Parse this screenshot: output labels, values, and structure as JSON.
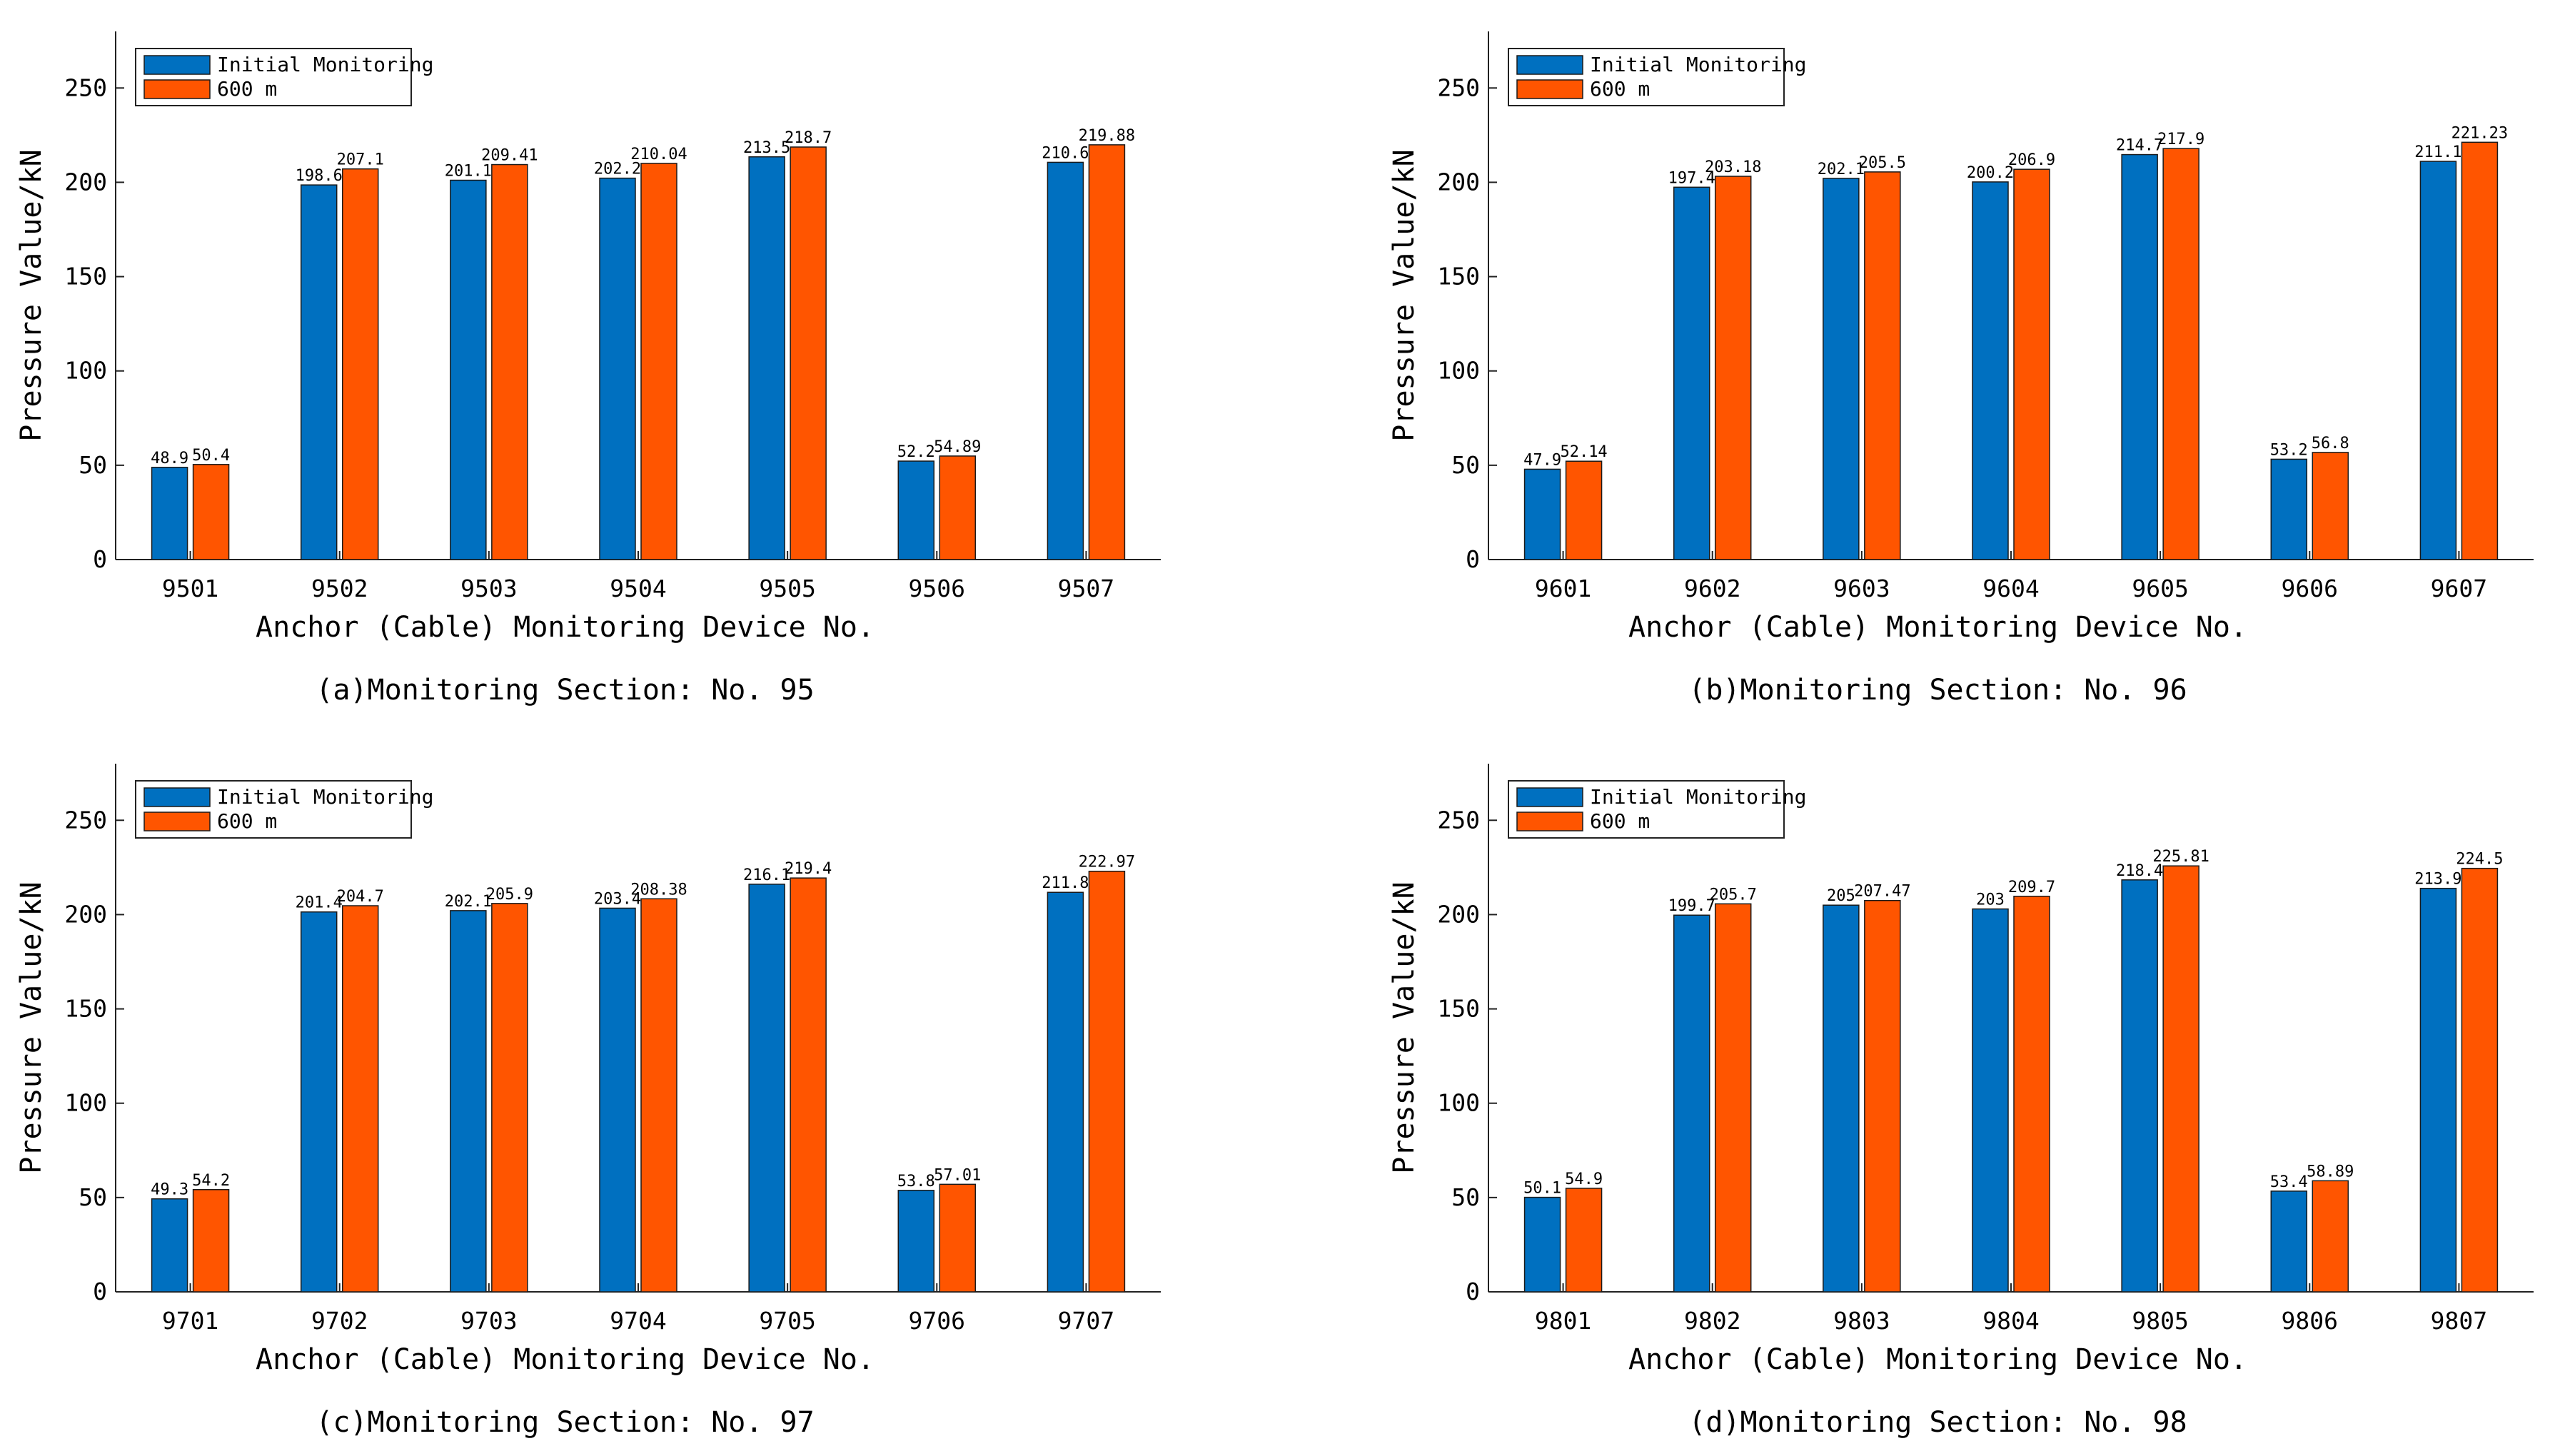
{
  "chart_data": [
    {
      "type": "bar",
      "caption": "(a)Monitoring Section: No. 95",
      "categories": [
        "9501",
        "9502",
        "9503",
        "9504",
        "9505",
        "9506",
        "9507"
      ],
      "series": [
        {
          "name": "Initial Monitoring",
          "color": "#0070C0",
          "values": [
            48.9,
            198.6,
            201.1,
            202.2,
            213.5,
            52.2,
            210.6
          ],
          "labels": [
            "48.9",
            "198.6",
            "201.1",
            "202.2",
            "213.5",
            "52.2",
            "210.6"
          ]
        },
        {
          "name": "600 m",
          "color": "#FF5500",
          "values": [
            50.4,
            207.1,
            209.41,
            210.04,
            218.7,
            54.89,
            219.88
          ],
          "labels": [
            "50.4",
            "207.1",
            "209.41",
            "210.04",
            "218.7",
            "54.89",
            "219.88"
          ]
        }
      ],
      "xlabel": "Anchor (Cable) Monitoring Device No.",
      "ylabel": "Pressure Value/kN",
      "ylim": [
        0,
        280
      ],
      "yticks": [
        0,
        50,
        100,
        150,
        200,
        250
      ],
      "legend": "top-left"
    },
    {
      "type": "bar",
      "caption": "(b)Monitoring Section: No. 96",
      "categories": [
        "9601",
        "9602",
        "9603",
        "9604",
        "9605",
        "9606",
        "9607"
      ],
      "series": [
        {
          "name": "Initial Monitoring",
          "color": "#0070C0",
          "values": [
            47.9,
            197.4,
            202.1,
            200.2,
            214.7,
            53.2,
            211.1
          ],
          "labels": [
            "47.9",
            "197.4",
            "202.1",
            "200.2",
            "214.7",
            "53.2",
            "211.1"
          ]
        },
        {
          "name": "600 m",
          "color": "#FF5500",
          "values": [
            52.14,
            203.18,
            205.5,
            206.9,
            217.9,
            56.8,
            221.23
          ],
          "labels": [
            "52.14",
            "203.18",
            "205.5",
            "206.9",
            "217.9",
            "56.8",
            "221.23"
          ]
        }
      ],
      "xlabel": "Anchor (Cable) Monitoring Device No.",
      "ylabel": "Pressure Value/kN",
      "ylim": [
        0,
        280
      ],
      "yticks": [
        0,
        50,
        100,
        150,
        200,
        250
      ],
      "legend": "top-left"
    },
    {
      "type": "bar",
      "caption": "(c)Monitoring Section: No. 97",
      "categories": [
        "9701",
        "9702",
        "9703",
        "9704",
        "9705",
        "9706",
        "9707"
      ],
      "series": [
        {
          "name": "Initial Monitoring",
          "color": "#0070C0",
          "values": [
            49.3,
            201.4,
            202.1,
            203.4,
            216.1,
            53.8,
            211.8
          ],
          "labels": [
            "49.3",
            "201.4",
            "202.1",
            "203.4",
            "216.1",
            "53.8",
            "211.8"
          ]
        },
        {
          "name": "600 m",
          "color": "#FF5500",
          "values": [
            54.2,
            204.7,
            205.9,
            208.38,
            219.4,
            57.01,
            222.97
          ],
          "labels": [
            "54.2",
            "204.7",
            "205.9",
            "208.38",
            "219.4",
            "57.01",
            "222.97"
          ]
        }
      ],
      "xlabel": "Anchor (Cable) Monitoring Device No.",
      "ylabel": "Pressure Value/kN",
      "ylim": [
        0,
        280
      ],
      "yticks": [
        0,
        50,
        100,
        150,
        200,
        250
      ],
      "legend": "top-left"
    },
    {
      "type": "bar",
      "caption": "(d)Monitoring Section: No. 98",
      "categories": [
        "9801",
        "9802",
        "9803",
        "9804",
        "9805",
        "9806",
        "9807"
      ],
      "series": [
        {
          "name": "Initial Monitoring",
          "color": "#0070C0",
          "values": [
            50.1,
            199.7,
            205,
            203,
            218.4,
            53.4,
            213.9
          ],
          "labels": [
            "50.1",
            "199.7",
            "205",
            "203",
            "218.4",
            "53.4",
            "213.9"
          ]
        },
        {
          "name": "600 m",
          "color": "#FF5500",
          "values": [
            54.9,
            205.7,
            207.47,
            209.7,
            225.81,
            58.89,
            224.5
          ],
          "labels": [
            "54.9",
            "205.7",
            "207.47",
            "209.7",
            "225.81",
            "58.89",
            "224.5"
          ]
        }
      ],
      "xlabel": "Anchor (Cable) Monitoring Device No.",
      "ylabel": "Pressure Value/kN",
      "ylim": [
        0,
        280
      ],
      "yticks": [
        0,
        50,
        100,
        150,
        200,
        250
      ],
      "legend": "top-left"
    }
  ]
}
